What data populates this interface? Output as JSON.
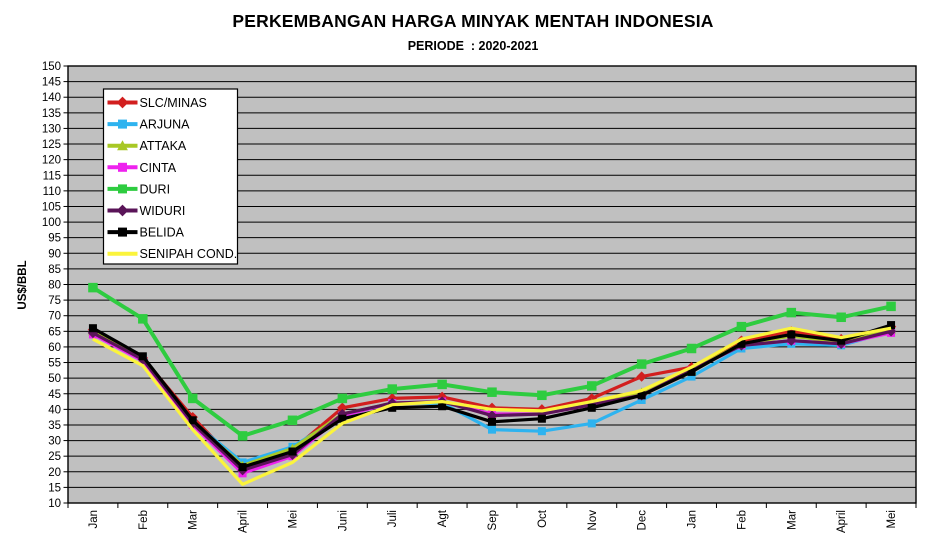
{
  "title": "PERKEMBANGAN HARGA MINYAK MENTAH INDONESIA",
  "subtitle": "PERIODE  : 2020-2021",
  "chart_data": {
    "type": "line",
    "title": "PERKEMBANGAN HARGA MINYAK MENTAH INDONESIA",
    "subtitle": "PERIODE : 2020-2021",
    "ylabel": "US$/BBL",
    "xlabel": "",
    "grid": true,
    "plot_bg": "#c0c0c0",
    "legend_position": "top-left-inside",
    "y_axis": {
      "min": 10,
      "max": 150,
      "step": 5
    },
    "categories": [
      "Jan",
      "Feb",
      "Mar",
      "April",
      "Mei",
      "Juni",
      "Juli",
      "Agt",
      "Sep",
      "Oct",
      "Nov",
      "Dec",
      "Jan",
      "Feb",
      "Mar",
      "April",
      "Mei"
    ],
    "series": [
      {
        "name": "SLC/MINAS",
        "color": "#d21f1f",
        "marker": "diamond",
        "values": [
          65.5,
          56.5,
          37.5,
          21,
          27,
          40.5,
          43.5,
          44,
          40.5,
          40,
          43.5,
          50.5,
          53.5,
          62,
          65,
          62.5,
          66.5
        ]
      },
      {
        "name": "ARJUNA",
        "color": "#2eb3ef",
        "marker": "square",
        "values": [
          65,
          56.5,
          36,
          23,
          28,
          38,
          42,
          42,
          33.5,
          33,
          35.5,
          43,
          50.5,
          59.5,
          61,
          60.5,
          65
        ]
      },
      {
        "name": "ATTAKA",
        "color": "#a8c825",
        "marker": "triangle",
        "values": [
          65,
          56.5,
          36,
          22,
          27.5,
          38.5,
          42,
          42.5,
          38.5,
          38.5,
          42,
          45.5,
          52.5,
          61,
          63.5,
          61.5,
          65.5
        ]
      },
      {
        "name": "CINTA",
        "color": "#ee22ee",
        "marker": "square",
        "values": [
          64,
          55.5,
          35,
          19.5,
          25,
          38,
          42,
          42.5,
          38.5,
          38.5,
          41.5,
          44.5,
          52.5,
          60.5,
          62,
          61,
          64.5
        ]
      },
      {
        "name": "DURI",
        "color": "#2ecc40",
        "marker": "square",
        "values": [
          79,
          69,
          43.5,
          31.5,
          36.5,
          43.5,
          46.5,
          48,
          45.5,
          44.5,
          47.5,
          54.5,
          59.5,
          66.5,
          71,
          69.5,
          73
        ]
      },
      {
        "name": "WIDURI",
        "color": "#5a1458",
        "marker": "diamond",
        "values": [
          64.5,
          56,
          35.5,
          20.5,
          25.5,
          38.5,
          42,
          42.5,
          38,
          38.5,
          41.5,
          44.5,
          52.5,
          60.5,
          62,
          61,
          65
        ]
      },
      {
        "name": "BELIDA",
        "color": "#000000",
        "marker": "square",
        "values": [
          66,
          57,
          36.5,
          21.5,
          26.5,
          37,
          40.5,
          41,
          36,
          37,
          40.5,
          44.5,
          52,
          61,
          64,
          62,
          67
        ]
      },
      {
        "name": "SENIPAH COND.",
        "color": "#fbf43c",
        "marker": "none",
        "values": [
          62.5,
          54,
          33.5,
          16,
          23,
          35.5,
          41.5,
          42.5,
          40,
          39.5,
          42.5,
          46,
          53.5,
          62.5,
          66,
          63,
          66
        ]
      }
    ]
  }
}
